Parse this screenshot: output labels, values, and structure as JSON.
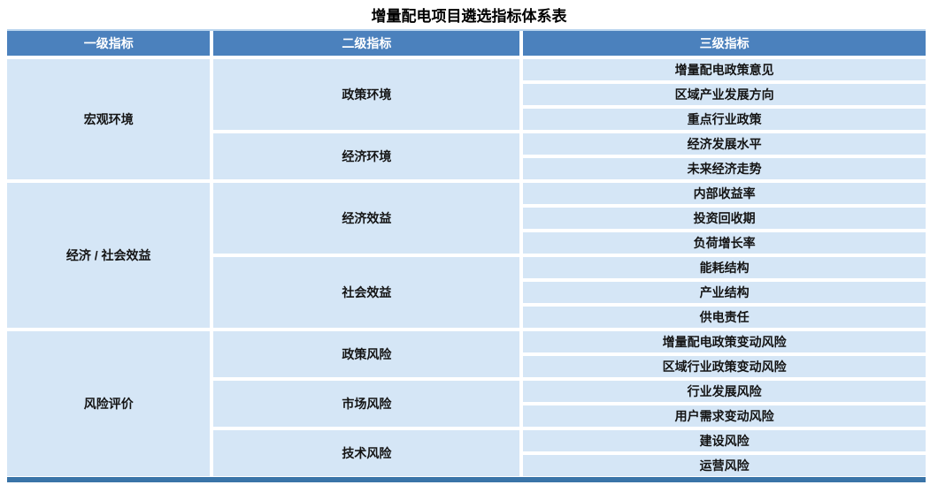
{
  "title": "增量配电项目遴选指标体系表",
  "table": {
    "headers": [
      "一级指标",
      "二级指标",
      "三级指标"
    ],
    "sections": [
      {
        "level1": "宏观环境",
        "groups": [
          {
            "level2": "政策环境",
            "level3": [
              "增量配电政策意见",
              "区域产业发展方向",
              "重点行业政策"
            ]
          },
          {
            "level2": "经济环境",
            "level3": [
              "经济发展水平",
              "未来经济走势"
            ]
          }
        ]
      },
      {
        "level1": "经济 / 社会效益",
        "groups": [
          {
            "level2": "经济效益",
            "level3": [
              "内部收益率",
              "投资回收期",
              "负荷增长率"
            ]
          },
          {
            "level2": "社会效益",
            "level3": [
              "能耗结构",
              "产业结构",
              "供电责任"
            ]
          }
        ]
      },
      {
        "level1": "风险评价",
        "groups": [
          {
            "level2": "政策风险",
            "level3": [
              "增量配电政策变动风险",
              "区域行业政策变动风险"
            ]
          },
          {
            "level2": "市场风险",
            "level3": [
              "行业发展风险",
              "用户需求变动风险"
            ]
          },
          {
            "level2": "技术风险",
            "level3": [
              "建设风险",
              "运营风险"
            ]
          }
        ]
      }
    ]
  },
  "colors": {
    "header_bg": "#4B81BD",
    "header_text": "#FFFFFF",
    "cell_bg": "#D5E6F6",
    "cell_text": "#141414",
    "top_line": "#BAD5EE",
    "bottom_bar": "#3A74A8",
    "gap": "#FFFFFF"
  }
}
